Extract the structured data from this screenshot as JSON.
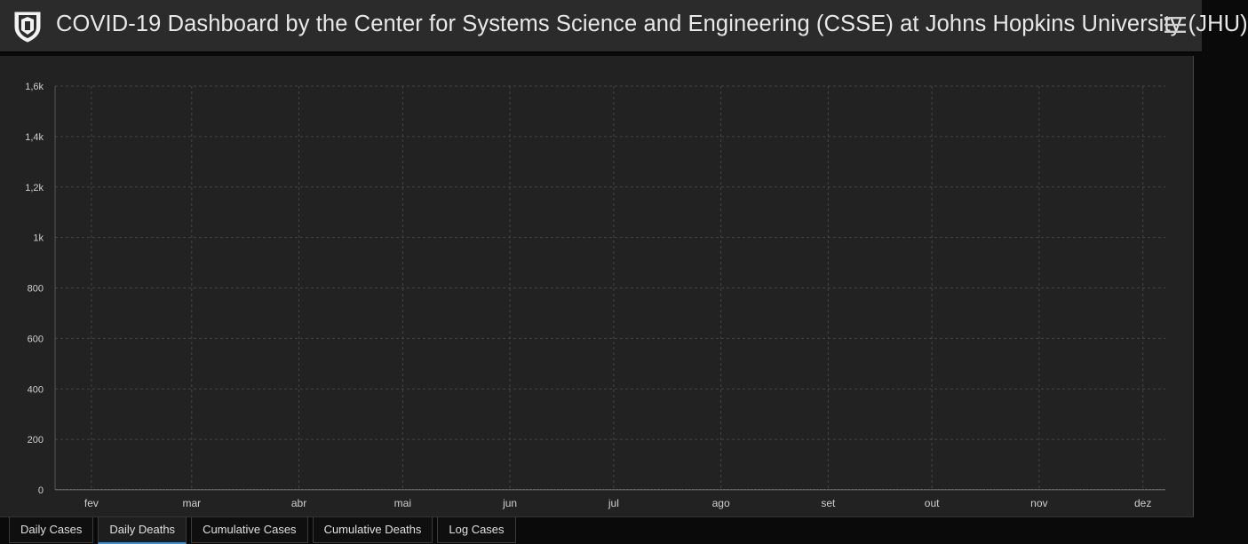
{
  "header": {
    "title": "COVID-19 Dashboard by the Center for Systems Science and Engineering (CSSE) at Johns Hopkins University (JHU)",
    "logo_icon": "jhu-shield-icon",
    "menu_icon": "hamburger-menu-icon"
  },
  "tabs": [
    {
      "label": "Daily Cases",
      "active": false
    },
    {
      "label": "Daily Deaths",
      "active": true
    },
    {
      "label": "Cumulative Cases",
      "active": false
    },
    {
      "label": "Cumulative Deaths",
      "active": false
    },
    {
      "label": "Log Cases",
      "active": false
    }
  ],
  "colors": {
    "background": "#222222",
    "bar": "#e6e6e6",
    "grid": "#444444",
    "active_tab_underline": "#3b8ecf"
  },
  "chart_data": {
    "type": "bar",
    "grid": true,
    "ylim": [
      0,
      1600
    ],
    "yticks": [
      {
        "value": 0,
        "label": "0"
      },
      {
        "value": 200,
        "label": "200"
      },
      {
        "value": 400,
        "label": "400"
      },
      {
        "value": 600,
        "label": "600"
      },
      {
        "value": 800,
        "label": "800"
      },
      {
        "value": 1000,
        "label": "1k"
      },
      {
        "value": 1200,
        "label": "1,2k"
      },
      {
        "value": 1400,
        "label": "1,4k"
      },
      {
        "value": 1600,
        "label": "1,6k"
      }
    ],
    "xticks": [
      {
        "day": 10,
        "label": "fev"
      },
      {
        "day": 39,
        "label": "mar"
      },
      {
        "day": 70,
        "label": "abr"
      },
      {
        "day": 100,
        "label": "mai"
      },
      {
        "day": 131,
        "label": "jun"
      },
      {
        "day": 161,
        "label": "jul"
      },
      {
        "day": 192,
        "label": "ago"
      },
      {
        "day": 223,
        "label": "set"
      },
      {
        "day": 253,
        "label": "out"
      },
      {
        "day": 284,
        "label": "nov"
      },
      {
        "day": 314,
        "label": "dez"
      }
    ],
    "values": [
      1,
      1,
      1,
      1,
      1,
      1,
      1,
      1,
      1,
      1,
      1,
      1,
      1,
      1,
      1,
      1,
      1,
      1,
      1,
      1,
      1,
      1,
      1,
      1,
      1,
      1,
      1,
      1,
      1,
      1,
      1,
      1,
      1,
      1,
      1,
      1,
      1,
      1,
      1,
      1,
      1,
      1,
      1,
      1,
      1,
      1,
      1,
      1,
      1,
      1,
      1,
      1,
      1,
      1,
      1,
      1,
      1,
      1,
      1,
      1,
      1,
      1,
      1,
      1,
      1,
      1,
      1,
      1,
      1,
      1,
      1,
      1,
      1,
      1,
      1,
      1,
      1,
      1,
      1,
      1,
      1,
      1,
      1,
      1,
      1,
      1,
      1,
      1,
      1,
      1,
      1,
      1,
      1,
      1,
      1,
      1,
      1,
      1,
      1,
      1,
      1,
      1,
      1,
      1,
      1,
      1,
      1,
      1,
      1,
      1,
      1,
      1,
      1,
      1,
      1,
      1,
      1,
      1,
      1,
      1,
      1,
      1,
      1,
      1,
      1,
      1,
      1,
      1,
      1,
      1,
      1,
      1,
      1,
      1,
      1,
      1,
      1,
      1,
      1,
      1,
      1,
      1,
      1,
      1,
      1,
      1,
      1,
      1,
      1,
      1,
      1,
      1,
      1,
      1,
      1,
      1,
      1,
      1,
      1,
      1,
      1,
      1,
      1,
      1,
      1,
      1,
      1,
      1,
      1,
      1,
      1,
      1,
      1,
      1,
      1,
      1,
      1,
      1,
      1,
      1,
      1,
      1,
      1,
      1,
      1,
      1,
      1,
      1,
      1,
      1,
      1,
      1,
      1,
      1,
      1,
      1,
      1,
      1,
      1,
      1,
      1,
      1,
      1,
      1,
      1,
      1,
      1,
      1,
      1,
      1,
      1,
      1,
      1,
      1,
      1,
      1,
      1,
      1,
      1,
      1,
      1,
      1,
      1,
      1,
      1,
      1,
      1,
      1,
      1,
      1,
      1,
      1,
      1,
      1,
      1,
      1,
      1,
      1,
      1,
      1,
      1,
      1,
      1,
      1,
      1,
      1,
      1,
      1,
      1,
      1,
      1,
      1,
      1,
      1,
      1,
      1,
      1,
      1,
      1,
      1,
      1,
      1,
      1,
      1,
      1,
      1,
      1,
      1,
      1,
      1,
      1,
      1,
      1,
      1,
      1,
      1,
      1,
      1,
      1,
      1,
      1,
      1,
      1,
      1,
      1,
      1,
      1,
      1,
      1,
      1,
      1,
      1,
      1,
      1,
      1,
      1,
      1,
      1,
      1,
      1,
      1,
      1,
      1,
      1,
      1,
      1,
      1,
      1,
      1,
      1,
      1,
      1,
      1,
      1,
      1,
      1,
      1,
      1,
      1,
      1,
      1
    ]
  }
}
